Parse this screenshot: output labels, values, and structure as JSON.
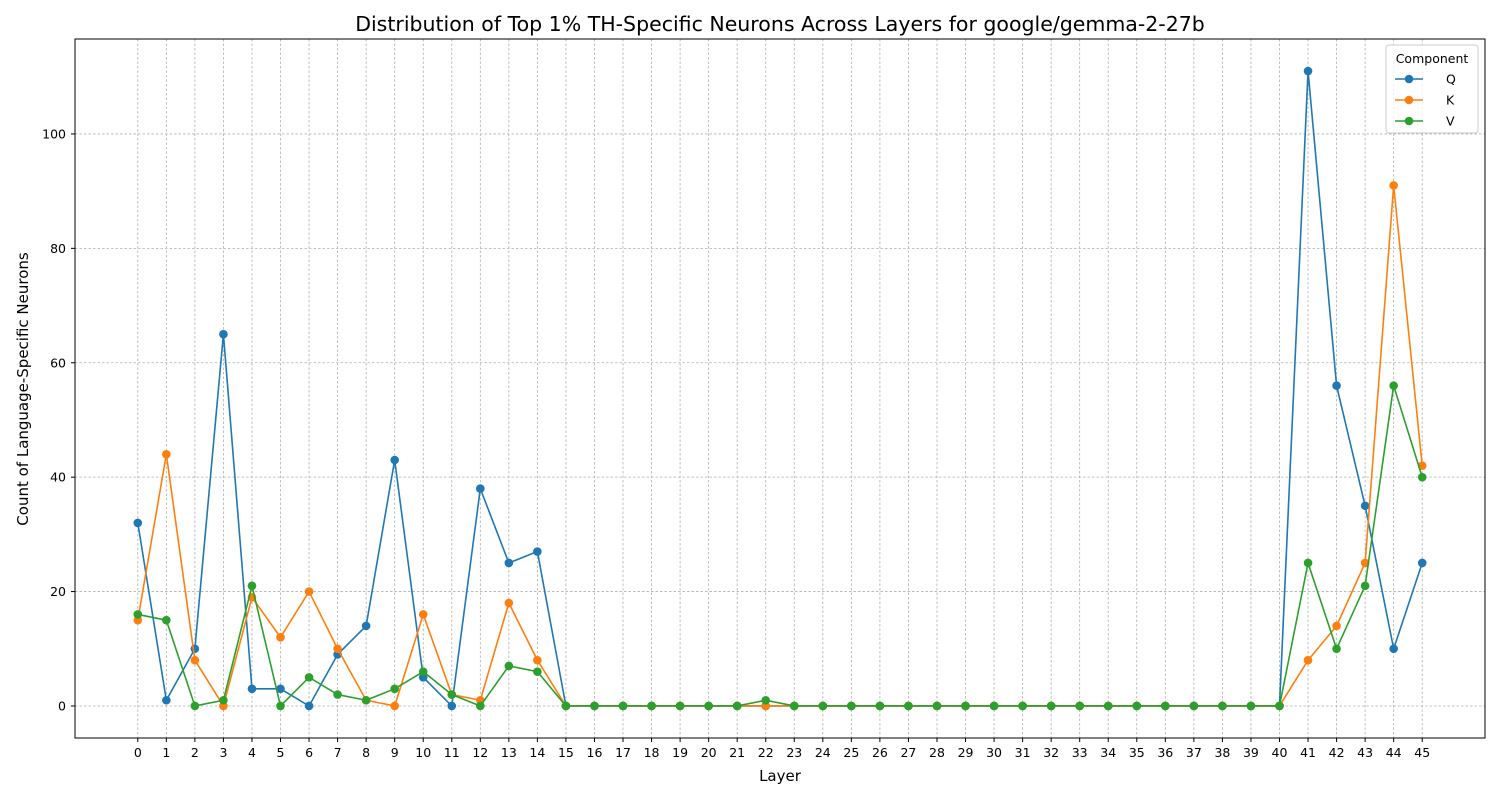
{
  "chart_data": {
    "type": "line",
    "title": "Distribution of Top 1% TH-Specific Neurons Across Layers for google/gemma-2-27b",
    "xlabel": "Layer",
    "ylabel": "Count of Language-Specific Neurons",
    "x": [
      0,
      1,
      2,
      3,
      4,
      5,
      6,
      7,
      8,
      9,
      10,
      11,
      12,
      13,
      14,
      15,
      16,
      17,
      18,
      19,
      20,
      21,
      22,
      23,
      24,
      25,
      26,
      27,
      28,
      29,
      30,
      31,
      32,
      33,
      34,
      35,
      36,
      37,
      38,
      39,
      40,
      41,
      42,
      43,
      44,
      45
    ],
    "xticks": [
      "0",
      "1",
      "2",
      "3",
      "4",
      "5",
      "6",
      "7",
      "8",
      "9",
      "10",
      "11",
      "12",
      "13",
      "14",
      "15",
      "16",
      "17",
      "18",
      "19",
      "20",
      "21",
      "22",
      "23",
      "24",
      "25",
      "26",
      "27",
      "28",
      "29",
      "30",
      "31",
      "32",
      "33",
      "34",
      "35",
      "36",
      "37",
      "38",
      "39",
      "40",
      "41",
      "42",
      "43",
      "44",
      "45"
    ],
    "yticks": [
      "0",
      "20",
      "40",
      "60",
      "80",
      "100"
    ],
    "xlim": [
      -2.2,
      47.2
    ],
    "ylim": [
      -5.6,
      116.6
    ],
    "grid": true,
    "legend": {
      "title": "Component",
      "placement": "top-right"
    },
    "series": [
      {
        "name": "Q",
        "color": "#1f77b4",
        "values": [
          32,
          1,
          10,
          65,
          3,
          3,
          0,
          9,
          14,
          43,
          5,
          0,
          38,
          25,
          27,
          0,
          0,
          0,
          0,
          0,
          0,
          0,
          0,
          0,
          0,
          0,
          0,
          0,
          0,
          0,
          0,
          0,
          0,
          0,
          0,
          0,
          0,
          0,
          0,
          0,
          0,
          111,
          56,
          35,
          10,
          25
        ]
      },
      {
        "name": "K",
        "color": "#ff7f0e",
        "values": [
          15,
          44,
          8,
          0,
          19,
          12,
          20,
          10,
          1,
          0,
          16,
          2,
          1,
          18,
          8,
          0,
          0,
          0,
          0,
          0,
          0,
          0,
          0,
          0,
          0,
          0,
          0,
          0,
          0,
          0,
          0,
          0,
          0,
          0,
          0,
          0,
          0,
          0,
          0,
          0,
          0,
          8,
          14,
          25,
          91,
          42
        ]
      },
      {
        "name": "V",
        "color": "#2ca02c",
        "values": [
          16,
          15,
          0,
          1,
          21,
          0,
          5,
          2,
          1,
          3,
          6,
          2,
          0,
          7,
          6,
          0,
          0,
          0,
          0,
          0,
          0,
          0,
          1,
          0,
          0,
          0,
          0,
          0,
          0,
          0,
          0,
          0,
          0,
          0,
          0,
          0,
          0,
          0,
          0,
          0,
          0,
          25,
          10,
          21,
          56,
          40
        ]
      }
    ]
  }
}
